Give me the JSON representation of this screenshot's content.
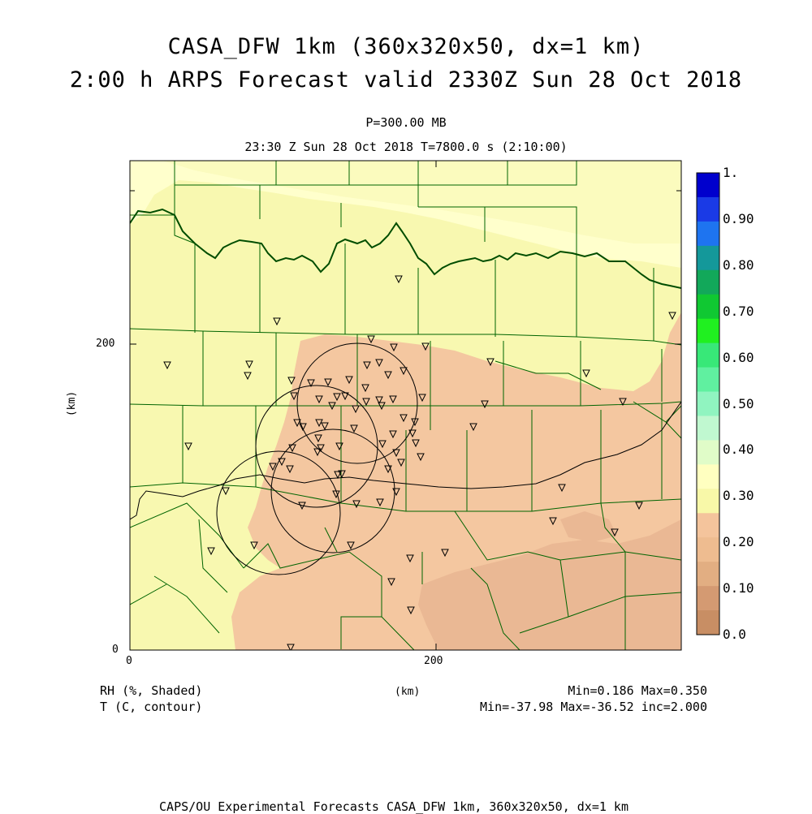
{
  "title": {
    "line1": "CASA_DFW 1km (360x320x50, dx=1 km)",
    "line2": "2:00 h ARPS Forecast valid 2330Z Sun 28 Oct 2018"
  },
  "subtitle": {
    "level": "P=300.00 MB",
    "time": "23:30 Z Sun 28 Oct 2018   T=7800.0 s (2:10:00)"
  },
  "axes": {
    "x_unit": "(km)",
    "y_unit": "(km)",
    "x_ticks": [
      "0",
      "200"
    ],
    "y_ticks": [
      "0",
      "200"
    ]
  },
  "legend": {
    "shaded_label": "RH (%, Shaded)",
    "contour_label": "T (C, contour)",
    "shaded_stats": "Min=0.186 Max=0.350",
    "contour_stats": "Min=-37.98 Max=-36.52 inc=2.000"
  },
  "colorbar": {
    "labels": [
      "1.",
      "0.90",
      "0.80",
      "0.70",
      "0.60",
      "0.50",
      "0.40",
      "0.30",
      "0.20",
      "0.10",
      "0.0"
    ],
    "colors": [
      "#0000cd",
      "#1a3ae6",
      "#1e74f0",
      "#14989a",
      "#12a85a",
      "#10c832",
      "#20f020",
      "#38e878",
      "#60f0a0",
      "#90f4c0",
      "#c0f8d0",
      "#e0fcc8",
      "#ffffc0",
      "#f8f8a8",
      "#f4c49c",
      "#eebc90",
      "#e2ae82",
      "#d49a72",
      "#c88e64"
    ]
  },
  "field_colors": {
    "rh_high": "#ffffcc",
    "rh_mid": "#f8f8b0",
    "rh_low": "#f4c7a0",
    "rh_lowest": "#eab894",
    "county_lines": "#006400",
    "state_line": "#004d00"
  },
  "footer": "CAPS/OU Experimental Forecasts  CASA_DFW 1km, 360x320x50, dx=1 km"
}
